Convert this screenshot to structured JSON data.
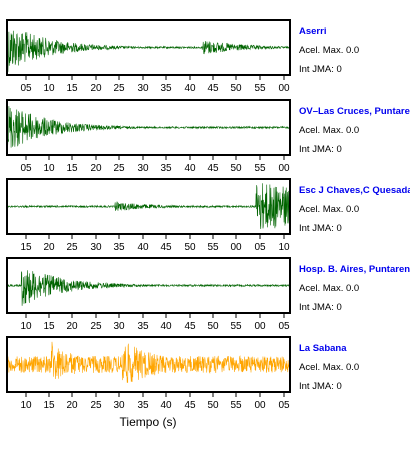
{
  "chart_data": {
    "type": "line",
    "xlabel": "Tiempo (s)",
    "panels": [
      {
        "station": "Aserri",
        "acel_label": "Acel. Max. 0.0",
        "jma_label": "Int JMA: 0",
        "color": "#006400",
        "ticks": [
          "05",
          "10",
          "15",
          "20",
          "25",
          "30",
          "35",
          "40",
          "45",
          "50",
          "55",
          "00"
        ],
        "bursts": [
          {
            "t": 0.0,
            "amp": 0.95
          },
          {
            "t": 0.69,
            "amp": 0.3
          }
        ]
      },
      {
        "station": "OV–Las Cruces, Puntarenas",
        "acel_label": "Acel. Max. 0.0",
        "jma_label": "Int JMA: 0",
        "color": "#006400",
        "ticks": [
          "05",
          "10",
          "15",
          "20",
          "25",
          "30",
          "35",
          "40",
          "45",
          "50",
          "55",
          "00"
        ],
        "bursts": [
          {
            "t": 0.0,
            "amp": 0.95
          }
        ]
      },
      {
        "station": "Esc J Chaves,C Quesada",
        "acel_label": "Acel. Max. 0.0",
        "jma_label": "Int JMA: 0",
        "color": "#006400",
        "ticks": [
          "15",
          "20",
          "25",
          "30",
          "35",
          "40",
          "45",
          "50",
          "55",
          "00",
          "05",
          "10"
        ],
        "bursts": [
          {
            "t": 0.38,
            "amp": 0.18
          },
          {
            "t": 0.88,
            "amp": 0.95
          }
        ]
      },
      {
        "station": "Hosp. B. Aires, Puntarenas",
        "acel_label": "Acel. Max. 0.0",
        "jma_label": "Int JMA: 0",
        "color": "#006400",
        "ticks": [
          "10",
          "15",
          "20",
          "25",
          "30",
          "35",
          "40",
          "45",
          "50",
          "55",
          "00",
          "05"
        ],
        "bursts": [
          {
            "t": 0.05,
            "amp": 0.8
          }
        ]
      },
      {
        "station": "La Sabana",
        "acel_label": "Acel. Max. 0.0",
        "jma_label": "Int JMA: 0",
        "color": "#ffa500",
        "ticks": [
          "10",
          "15",
          "20",
          "25",
          "30",
          "35",
          "40",
          "45",
          "50",
          "55",
          "00",
          "05"
        ],
        "bursts": [
          {
            "t": 0.16,
            "amp": 0.7
          },
          {
            "t": 0.41,
            "amp": 0.9
          }
        ]
      }
    ]
  }
}
